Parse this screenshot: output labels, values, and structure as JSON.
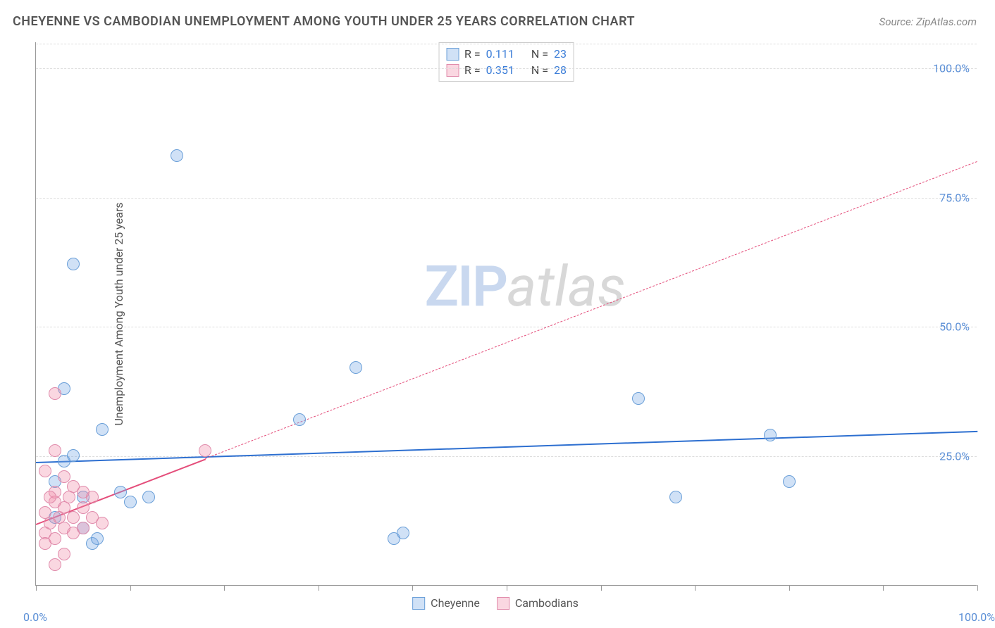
{
  "title": "CHEYENNE VS CAMBODIAN UNEMPLOYMENT AMONG YOUTH UNDER 25 YEARS CORRELATION CHART",
  "source": "Source: ZipAtlas.com",
  "y_axis_label": "Unemployment Among Youth under 25 years",
  "watermark": {
    "part1": "ZIP",
    "part2": "atlas"
  },
  "chart": {
    "type": "scatter",
    "xlim": [
      0,
      100
    ],
    "ylim": [
      0,
      105
    ],
    "y_ticks": [
      25,
      50,
      75,
      100
    ],
    "y_tick_labels": [
      "25.0%",
      "50.0%",
      "75.0%",
      "100.0%"
    ],
    "x_ticks": [
      0,
      10,
      20,
      30,
      40,
      50,
      60,
      70,
      80,
      90,
      100
    ],
    "x_tick_labels_shown": {
      "0": "0.0%",
      "100": "100.0%"
    },
    "background_color": "#ffffff",
    "grid_color": "#dddddd",
    "axis_color": "#999999",
    "tick_label_color": "#5b8fd6",
    "series": [
      {
        "name": "Cheyenne",
        "color_fill": "rgba(120,170,230,0.35)",
        "color_stroke": "#6a9fd8",
        "marker_radius": 9,
        "points": [
          [
            2,
            20
          ],
          [
            3,
            24
          ],
          [
            4,
            25
          ],
          [
            5,
            17
          ],
          [
            6,
            8
          ],
          [
            6.5,
            9
          ],
          [
            7,
            30
          ],
          [
            3,
            38
          ],
          [
            10,
            16
          ],
          [
            9,
            18
          ],
          [
            12,
            17
          ],
          [
            4,
            62
          ],
          [
            5,
            11
          ],
          [
            15,
            83
          ],
          [
            34,
            42
          ],
          [
            28,
            32
          ],
          [
            38,
            9
          ],
          [
            39,
            10
          ],
          [
            68,
            17
          ],
          [
            78,
            29
          ],
          [
            64,
            36
          ],
          [
            80,
            20
          ],
          [
            2,
            13
          ]
        ],
        "trend": {
          "x1": 0,
          "y1": 24,
          "x2": 100,
          "y2": 30,
          "solid_to_x": 100,
          "color": "#2d6fd0",
          "width": 2.5
        },
        "stats": {
          "R": "0.111",
          "N": "23"
        }
      },
      {
        "name": "Cambodians",
        "color_fill": "rgba(240,140,170,0.35)",
        "color_stroke": "#e08bab",
        "marker_radius": 9,
        "points": [
          [
            1,
            10
          ],
          [
            1.5,
            12
          ],
          [
            1,
            14
          ],
          [
            2,
            16
          ],
          [
            2,
            18
          ],
          [
            2.5,
            13
          ],
          [
            3,
            11
          ],
          [
            2,
            26
          ],
          [
            1,
            22
          ],
          [
            3,
            15
          ],
          [
            3.5,
            17
          ],
          [
            4,
            13
          ],
          [
            4,
            19
          ],
          [
            5,
            15
          ],
          [
            1,
            8
          ],
          [
            2,
            9
          ],
          [
            3,
            21
          ],
          [
            5,
            11
          ],
          [
            6,
            13
          ],
          [
            7,
            12
          ],
          [
            2,
            4
          ],
          [
            3,
            6
          ],
          [
            2,
            37
          ],
          [
            6,
            17
          ],
          [
            4,
            10
          ],
          [
            5,
            18
          ],
          [
            18,
            26
          ],
          [
            1.5,
            17
          ]
        ],
        "trend": {
          "x1": 0,
          "y1": 12,
          "x2": 100,
          "y2": 82,
          "solid_to_x": 18,
          "color": "#e44d7a",
          "width": 2
        },
        "stats": {
          "R": "0.351",
          "N": "28"
        }
      }
    ]
  },
  "legend_top": {
    "rows": [
      {
        "swatch_fill": "rgba(120,170,230,0.35)",
        "swatch_stroke": "#6a9fd8",
        "R_label": "R =",
        "R_val": "0.111",
        "N_label": "N =",
        "N_val": "23"
      },
      {
        "swatch_fill": "rgba(240,140,170,0.35)",
        "swatch_stroke": "#e08bab",
        "R_label": "R =",
        "R_val": "0.351",
        "N_label": "N =",
        "N_val": "28"
      }
    ]
  },
  "legend_bottom": {
    "items": [
      {
        "swatch_fill": "rgba(120,170,230,0.35)",
        "swatch_stroke": "#6a9fd8",
        "label": "Cheyenne"
      },
      {
        "swatch_fill": "rgba(240,140,170,0.35)",
        "swatch_stroke": "#e08bab",
        "label": "Cambodians"
      }
    ]
  }
}
